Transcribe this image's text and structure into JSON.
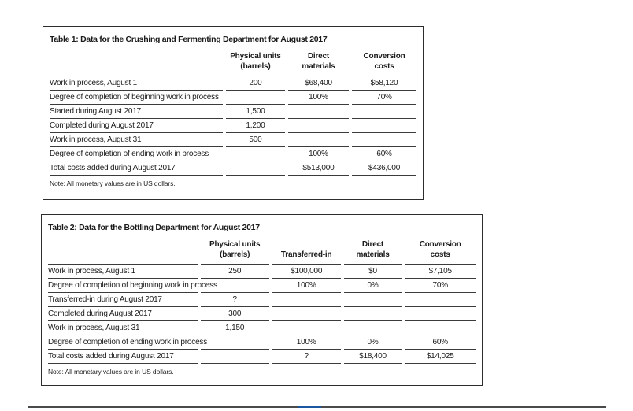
{
  "table1": {
    "title": "Table 1: Data for the Crushing and Fermenting Department for August 2017",
    "columns": [
      "",
      "Physical units\n(barrels)",
      "Direct\nmaterials",
      "Conversion\ncosts"
    ],
    "rows": [
      {
        "label": "Work in process, August 1",
        "values": [
          "200",
          "$68,400",
          "$58,120"
        ]
      },
      {
        "label": "Degree of completion of beginning work in process",
        "values": [
          "",
          "100%",
          "70%"
        ]
      },
      {
        "label": "Started during August 2017",
        "values": [
          "1,500",
          "",
          ""
        ]
      },
      {
        "label": "Completed during August 2017",
        "values": [
          "1,200",
          "",
          ""
        ]
      },
      {
        "label": "Work in process, August 31",
        "values": [
          "500",
          "",
          ""
        ]
      },
      {
        "label": "Degree of completion of ending work in process",
        "values": [
          "",
          "100%",
          "60%"
        ]
      },
      {
        "label": "Total costs added during August 2017",
        "values": [
          "",
          "$513,000",
          "$436,000"
        ]
      }
    ],
    "note": "Note: All monetary values are in US dollars."
  },
  "table2": {
    "title": "Table 2: Data for the Bottling Department for August 2017",
    "columns": [
      "",
      "Physical units\n(barrels)",
      "Transferred-in",
      "Direct\nmaterials",
      "Conversion\ncosts"
    ],
    "rows": [
      {
        "label": "Work in process, August 1",
        "values": [
          "250",
          "$100,000",
          "$0",
          "$7,105"
        ]
      },
      {
        "label": "Degree of completion of beginning work in process",
        "values": [
          "",
          "100%",
          "0%",
          "70%"
        ]
      },
      {
        "label": "Transferred-in during August 2017",
        "values": [
          "?",
          "",
          "",
          ""
        ]
      },
      {
        "label": "Completed during August 2017",
        "values": [
          "300",
          "",
          "",
          ""
        ]
      },
      {
        "label": "Work in process, August 31",
        "values": [
          "1,150",
          "",
          "",
          ""
        ]
      },
      {
        "label": "Degree of completion of ending work in process",
        "values": [
          "",
          "100%",
          "0%",
          "60%"
        ]
      },
      {
        "label": "Total costs added during August 2017",
        "values": [
          "",
          "?",
          "$18,400",
          "$14,025"
        ]
      }
    ],
    "note": "Note: All monetary values are in US dollars."
  },
  "footer": {
    "divider_color": "#4a4a4a",
    "accent_color": "#1a55a0"
  }
}
